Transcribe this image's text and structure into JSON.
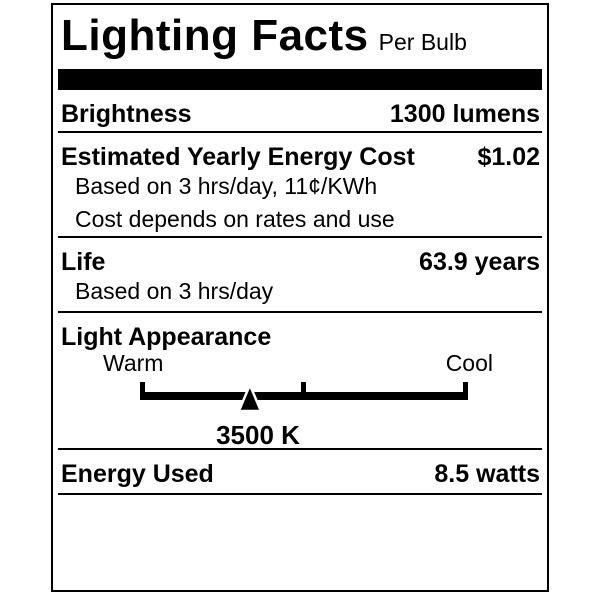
{
  "label": {
    "title": "Lighting Facts",
    "subtitle": "Per Bulb",
    "brightness": {
      "label": "Brightness",
      "value": "1300 lumens"
    },
    "energy_cost": {
      "label": "Estimated Yearly Energy Cost",
      "value": "$1.02",
      "notes": [
        "Based on 3 hrs/day, 11¢/KWh",
        "Cost depends on rates and use"
      ]
    },
    "life": {
      "label": "Life",
      "value": "63.9 years",
      "notes": [
        "Based on 3 hrs/day"
      ]
    },
    "light_appearance": {
      "label": "Light Appearance",
      "warm_label": "Warm",
      "cool_label": "Cool",
      "kelvin_value": "3500 K",
      "marker_percent": 33.5,
      "tick_percents": [
        0,
        50,
        100
      ]
    },
    "energy_used": {
      "label": "Energy Used",
      "value": "8.5 watts"
    },
    "colors": {
      "ink": "#000000",
      "background": "#ffffff"
    }
  }
}
